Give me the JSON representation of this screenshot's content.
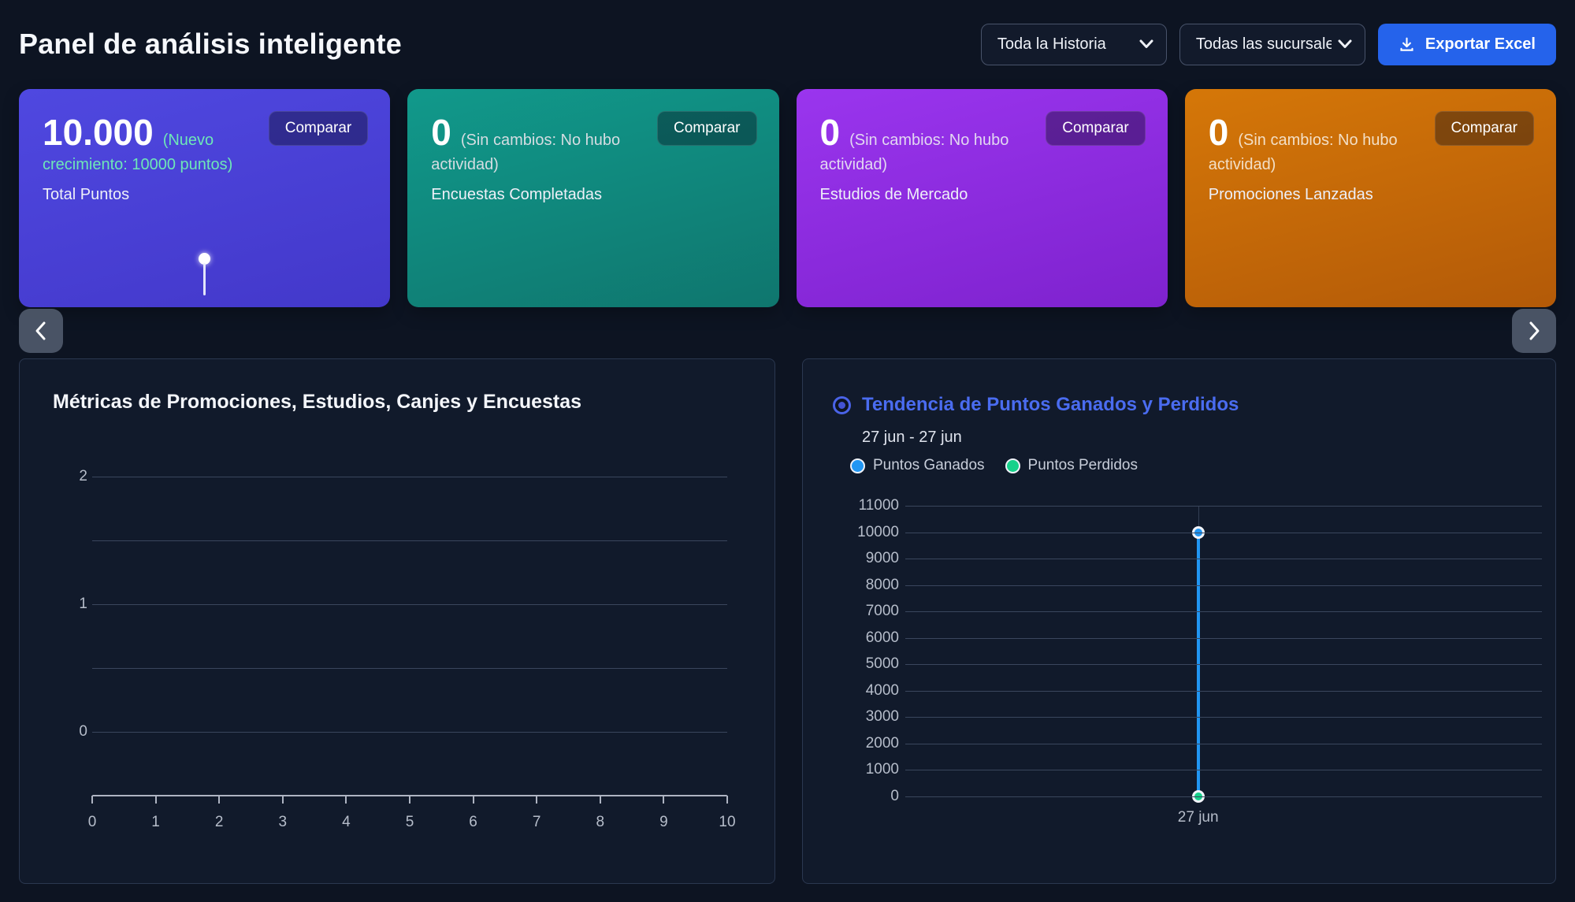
{
  "header": {
    "title": "Panel de análisis inteligente",
    "time_filter": {
      "value": "Toda la Historia"
    },
    "branch_filter": {
      "value": "Todas las sucursales"
    },
    "export_button": {
      "label": "Exportar Excel",
      "color": "#2563eb"
    }
  },
  "icons": {
    "export": "download-icon",
    "filter_dropdowns": "chevron-down-icon",
    "carousel_left": "chevron-left-icon",
    "carousel_right": "chevron-right-icon",
    "chart_selector": "radio-selected-icon",
    "card_sparkline": "lollipop-point-icon"
  },
  "cards": [
    {
      "value": "10.000",
      "note": "(Nuevo crecimiento: 10000 puntos)",
      "label": "Total Puntos",
      "compare_label": "Comparar",
      "color_from": "#4f48e0",
      "color_to": "#4338ca",
      "note_color": "#6ee7b7"
    },
    {
      "value": "0",
      "note": "(Sin cambios: No hubo actividad)",
      "label": "Encuestas Completadas",
      "compare_label": "Comparar",
      "color_from": "#11998b",
      "color_to": "#0f766e",
      "note_color": "#d5dde2"
    },
    {
      "value": "0",
      "note": "(Sin cambios: No hubo actividad)",
      "label": "Estudios de Mercado",
      "compare_label": "Comparar",
      "color_from": "#9a35ee",
      "color_to": "#7e22ce",
      "note_color": "#e2d7f1"
    },
    {
      "value": "0",
      "note": "(Sin cambios: No hubo actividad)",
      "label": "Promociones Lanzadas",
      "compare_label": "Comparar",
      "color_from": "#d57708",
      "color_to": "#b35a08",
      "note_color": "#f3dfc6"
    }
  ],
  "charts": {
    "left": {
      "title": "Métricas de Promociones, Estudios, Canjes y Encuestas"
    },
    "right": {
      "title": "Tendencia de Puntos Ganados y Perdidos",
      "date_range": "27 jun - 27 jun",
      "legend": [
        {
          "label": "Puntos Ganados",
          "color": "#2196f3"
        },
        {
          "label": "Puntos Perdidos",
          "color": "#16d18b"
        }
      ],
      "title_color": "#4a6cf0"
    }
  },
  "chart_data": [
    {
      "type": "line",
      "title": "Métricas de Promociones, Estudios, Canjes y Encuestas",
      "x": [
        0,
        1,
        2,
        3,
        4,
        5,
        6,
        7,
        8,
        9,
        10
      ],
      "xlim": [
        0,
        10
      ],
      "ylim": [
        0,
        2
      ],
      "y_gridlines": [
        0,
        0.5,
        1,
        1.5,
        2
      ],
      "y_tick_labels": [
        0,
        1,
        2
      ],
      "series": [],
      "grid": true,
      "legend_position": "none",
      "note": "axes rendered with no plotted data"
    },
    {
      "type": "line",
      "title": "Tendencia de Puntos Ganados y Perdidos",
      "categories": [
        "27 jun"
      ],
      "series": [
        {
          "name": "Puntos Ganados",
          "values": [
            10000
          ],
          "color": "#2196f3"
        },
        {
          "name": "Puntos Perdidos",
          "values": [
            0
          ],
          "color": "#16d18b"
        }
      ],
      "ylim": [
        0,
        11000
      ],
      "y_tick_step": 1000,
      "grid": true,
      "legend_position": "top",
      "marker_x_percent": 46
    }
  ]
}
